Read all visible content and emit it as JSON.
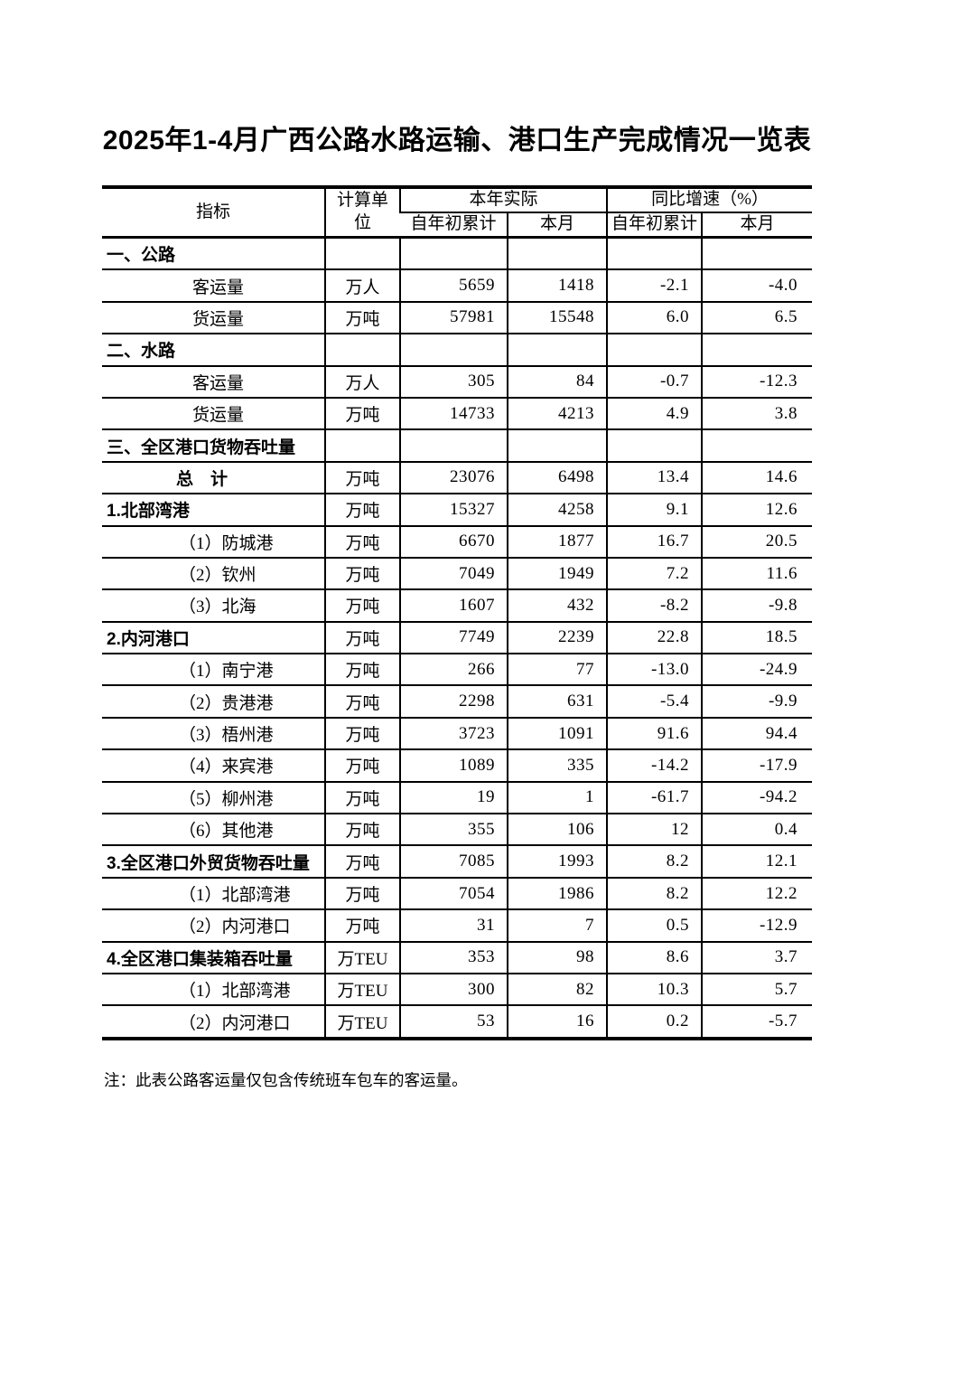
{
  "page": {
    "title": "2025年1-4月广西公路水路运输、港口生产完成情况一览表",
    "note": "注：此表公路客运量仅包含传统班车包车的客运量。"
  },
  "table": {
    "header": {
      "indicator": "指标",
      "unit": "计算单位",
      "actual_group": "本年实际",
      "growth_group": "同比增速（%）"
    },
    "sub_headers": [
      "自年初累计",
      "本月",
      "自年初累计",
      "本月"
    ],
    "rows": [
      {
        "label": "一、公路",
        "style": "section",
        "unit": "",
        "values": [
          "",
          "",
          "",
          ""
        ]
      },
      {
        "label": "客运量",
        "style": "item",
        "unit": "万人",
        "values": [
          "5659",
          "1418",
          "-2.1",
          "-4.0"
        ]
      },
      {
        "label": "货运量",
        "style": "item",
        "unit": "万吨",
        "values": [
          "57981",
          "15548",
          "6.0",
          "6.5"
        ]
      },
      {
        "label": "二、水路",
        "style": "section",
        "unit": "",
        "values": [
          "",
          "",
          "",
          ""
        ]
      },
      {
        "label": "客运量",
        "style": "item",
        "unit": "万人",
        "values": [
          "305",
          "84",
          "-0.7",
          "-12.3"
        ]
      },
      {
        "label": "货运量",
        "style": "item",
        "unit": "万吨",
        "values": [
          "14733",
          "4213",
          "4.9",
          "3.8"
        ]
      },
      {
        "label": "三、全区港口货物吞吐量",
        "style": "section",
        "unit": "",
        "values": [
          "",
          "",
          "",
          ""
        ]
      },
      {
        "label": "总　计",
        "style": "total",
        "unit": "万吨",
        "values": [
          "23076",
          "6498",
          "13.4",
          "14.6"
        ]
      },
      {
        "label": "1.北部湾港",
        "style": "section",
        "unit": "万吨",
        "values": [
          "15327",
          "4258",
          "9.1",
          "12.6"
        ]
      },
      {
        "label": "（1）防城港",
        "style": "sub",
        "unit": "万吨",
        "values": [
          "6670",
          "1877",
          "16.7",
          "20.5"
        ]
      },
      {
        "label": "（2）钦州",
        "style": "sub",
        "unit": "万吨",
        "values": [
          "7049",
          "1949",
          "7.2",
          "11.6"
        ]
      },
      {
        "label": "（3）北海",
        "style": "sub",
        "unit": "万吨",
        "values": [
          "1607",
          "432",
          "-8.2",
          "-9.8"
        ]
      },
      {
        "label": "2.内河港口",
        "style": "section",
        "unit": "万吨",
        "values": [
          "7749",
          "2239",
          "22.8",
          "18.5"
        ]
      },
      {
        "label": "（1）南宁港",
        "style": "sub",
        "unit": "万吨",
        "values": [
          "266",
          "77",
          "-13.0",
          "-24.9"
        ]
      },
      {
        "label": "（2）贵港港",
        "style": "sub",
        "unit": "万吨",
        "values": [
          "2298",
          "631",
          "-5.4",
          "-9.9"
        ]
      },
      {
        "label": "（3）梧州港",
        "style": "sub",
        "unit": "万吨",
        "values": [
          "3723",
          "1091",
          "91.6",
          "94.4"
        ]
      },
      {
        "label": "（4）来宾港",
        "style": "sub",
        "unit": "万吨",
        "values": [
          "1089",
          "335",
          "-14.2",
          "-17.9"
        ]
      },
      {
        "label": "（5）柳州港",
        "style": "sub",
        "unit": "万吨",
        "values": [
          "19",
          "1",
          "-61.7",
          "-94.2"
        ]
      },
      {
        "label": "（6）其他港",
        "style": "sub",
        "unit": "万吨",
        "values": [
          "355",
          "106",
          "12",
          "0.4"
        ]
      },
      {
        "label": "3.全区港口外贸货物吞吐量",
        "style": "section",
        "unit": "万吨",
        "values": [
          "7085",
          "1993",
          "8.2",
          "12.1"
        ]
      },
      {
        "label": "（1）北部湾港",
        "style": "sub",
        "unit": "万吨",
        "values": [
          "7054",
          "1986",
          "8.2",
          "12.2"
        ]
      },
      {
        "label": "（2）内河港口",
        "style": "sub",
        "unit": "万吨",
        "values": [
          "31",
          "7",
          "0.5",
          "-12.9"
        ]
      },
      {
        "label": "4.全区港口集装箱吞吐量",
        "style": "section",
        "unit": "万TEU",
        "values": [
          "353",
          "98",
          "8.6",
          "3.7"
        ]
      },
      {
        "label": "（1）北部湾港",
        "style": "sub",
        "unit": "万TEU",
        "values": [
          "300",
          "82",
          "10.3",
          "5.7"
        ]
      },
      {
        "label": "（2）内河港口",
        "style": "sub",
        "unit": "万TEU",
        "values": [
          "53",
          "16",
          "0.2",
          "-5.7"
        ]
      }
    ]
  }
}
